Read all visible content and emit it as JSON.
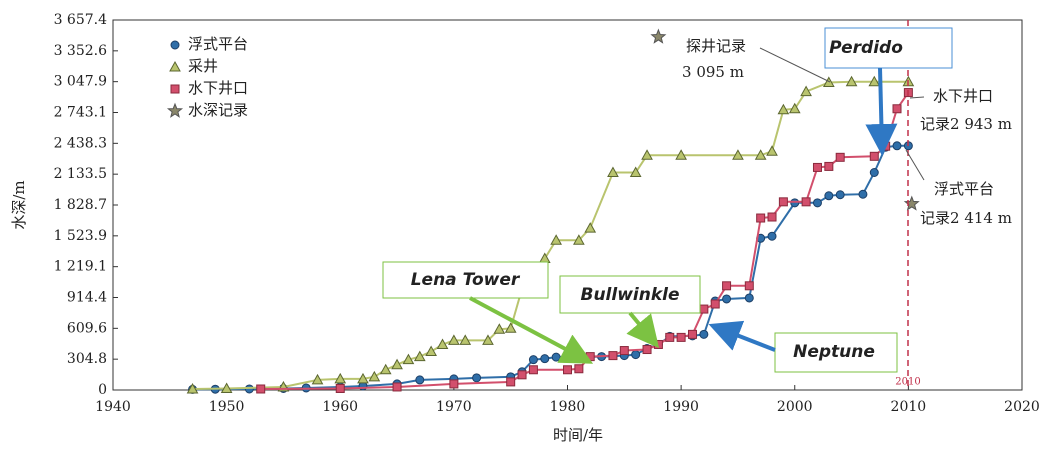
{
  "chart_data": {
    "type": "line",
    "xlabel": "时间/年",
    "ylabel": "水深/m",
    "xlim": [
      1940,
      2020
    ],
    "xticks": [
      1940,
      1950,
      1960,
      1970,
      1980,
      1990,
      2000,
      2010,
      2020
    ],
    "ylim": [
      0,
      3657.4
    ],
    "yticks": [
      0,
      304.8,
      609.6,
      914.4,
      {
        "value": 1219.1,
        "label": "1 219.1"
      },
      {
        "value": 1523.9,
        "label": "1 523.9"
      },
      {
        "value": 1828.7,
        "label": "1 828.7"
      },
      {
        "value": 2133.5,
        "label": "2 133.5"
      },
      {
        "value": 2438.3,
        "label": "2 438.3"
      },
      {
        "value": 2743.1,
        "label": "2 743.1"
      },
      {
        "value": 3047.9,
        "label": "3 047.9"
      },
      {
        "value": 3352.6,
        "label": "3 352.6"
      },
      {
        "value": 3657.4,
        "label": "3 657.4"
      }
    ],
    "series": [
      {
        "name": "浮式平台",
        "color": "#2f6ea8",
        "marker": "circle",
        "x": [
          1947,
          1949,
          1952,
          1955,
          1957,
          1960,
          1962,
          1965,
          1967,
          1970,
          1972,
          1975,
          1976,
          1977,
          1978,
          1979,
          1981,
          1983,
          1985,
          1986,
          1987,
          1988,
          1989,
          1991,
          1992,
          1993,
          1994,
          1996,
          1997,
          1998,
          2000,
          2002,
          2003,
          2004,
          2006,
          2007,
          2008,
          2009,
          2010
        ],
        "values": [
          6,
          8,
          10,
          15,
          20,
          30,
          40,
          60,
          100,
          110,
          120,
          130,
          180,
          300,
          310,
          325,
          325,
          330,
          340,
          350,
          410,
          450,
          530,
          535,
          550,
          880,
          900,
          910,
          1500,
          1520,
          1850,
          1850,
          1920,
          1930,
          1935,
          2150,
          2400,
          2414,
          2414
        ]
      },
      {
        "name": "采井",
        "color": "#b9c46e",
        "marker": "triangle",
        "x": [
          1947,
          1950,
          1955,
          1958,
          1960,
          1962,
          1963,
          1964,
          1965,
          1966,
          1967,
          1968,
          1969,
          1970,
          1971,
          1973,
          1974,
          1975,
          1976,
          1977,
          1978,
          1979,
          1981,
          1982,
          1984,
          1986,
          1987,
          1990,
          1995,
          1997,
          1998,
          1999,
          2000,
          2001,
          2003,
          2005,
          2007,
          2010
        ],
        "values": [
          10,
          15,
          30,
          100,
          110,
          110,
          130,
          200,
          250,
          300,
          330,
          380,
          450,
          490,
          490,
          490,
          600,
          610,
          1000,
          1150,
          1300,
          1480,
          1480,
          1600,
          2150,
          2150,
          2320,
          2320,
          2320,
          2320,
          2360,
          2770,
          2780,
          2950,
          3040,
          3047,
          3047,
          3047
        ]
      },
      {
        "name": "水下井口",
        "color": "#d24f6c",
        "marker": "square",
        "x": [
          1953,
          1960,
          1965,
          1970,
          1975,
          1976,
          1977,
          1980,
          1981,
          1982,
          1984,
          1985,
          1987,
          1988,
          1989,
          1990,
          1991,
          1992,
          1993,
          1994,
          1996,
          1997,
          1998,
          1999,
          2001,
          2002,
          2003,
          2004,
          2007,
          2008,
          2009,
          2010
        ],
        "values": [
          10,
          15,
          30,
          60,
          80,
          150,
          200,
          200,
          210,
          330,
          340,
          390,
          400,
          450,
          520,
          520,
          550,
          800,
          850,
          1030,
          1030,
          1700,
          1710,
          1860,
          1860,
          2200,
          2210,
          2300,
          2310,
          2410,
          2780,
          2940
        ]
      },
      {
        "name": "水深记录",
        "color": "#8a876a",
        "marker": "star",
        "x": [
          1988,
          2010.3
        ],
        "values": [
          3490,
          1840
        ]
      }
    ],
    "annotations": [
      "探井记录",
      "3 095 m",
      "水下井口",
      "记录2 943 m",
      "浮式平台",
      "记录2 414 m",
      "Perdido",
      "Lena Tower",
      "Bullwinkle",
      "Neptune",
      "2010"
    ]
  }
}
